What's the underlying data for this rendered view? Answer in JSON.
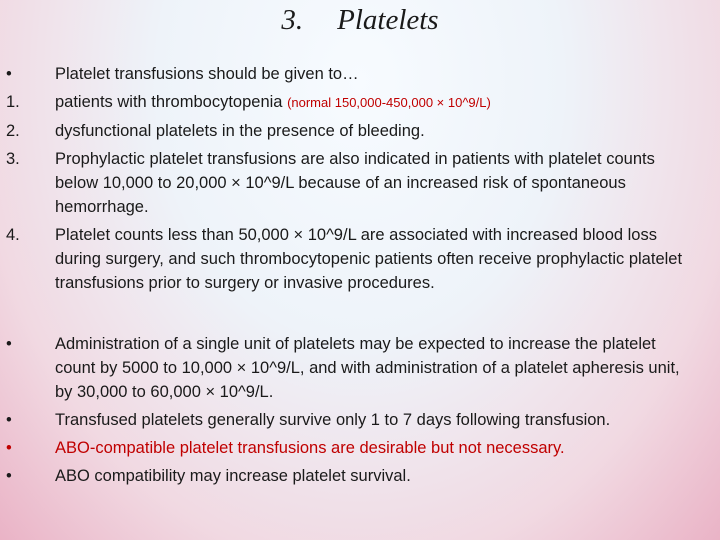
{
  "slide": {
    "title": {
      "number": "3.",
      "text": "Platelets"
    },
    "list1": [
      {
        "marker": "•",
        "text": "Platelet transfusions should be given to…"
      },
      {
        "marker": "1.",
        "text": "patients with thrombocytopenia",
        "note": "(normal 150,000-450,000 × 10^9/L)"
      },
      {
        "marker": "2.",
        "text": "dysfunctional platelets in the presence of bleeding."
      },
      {
        "marker": "3.",
        "text": "Prophylactic platelet transfusions are also indicated in patients with platelet counts below 10,000 to 20,000 × 10^9/L because of an increased risk of spontaneous hemorrhage."
      },
      {
        "marker": "4.",
        "text": "Platelet counts less than 50,000 × 10^9/L are associated with increased blood loss during surgery, and such thrombocytopenic patients often receive prophylactic platelet transfusions prior to surgery or invasive procedures."
      }
    ],
    "list2": [
      {
        "marker": "•",
        "text": "Administration of a single unit of platelets may be expected to increase the platelet count by 5000 to 10,000 × 10^9/L, and with administration of a platelet apheresis unit, by 30,000 to 60,000 × 10^9/L."
      },
      {
        "marker": "•",
        "text": "Transfused platelets generally survive only 1 to 7 days following transfusion."
      },
      {
        "marker": "•",
        "text": "ABO-compatible platelet transfusions are desirable but not necessary."
      },
      {
        "marker": "•",
        "text": "ABO compatibility may increase platelet survival."
      }
    ]
  }
}
